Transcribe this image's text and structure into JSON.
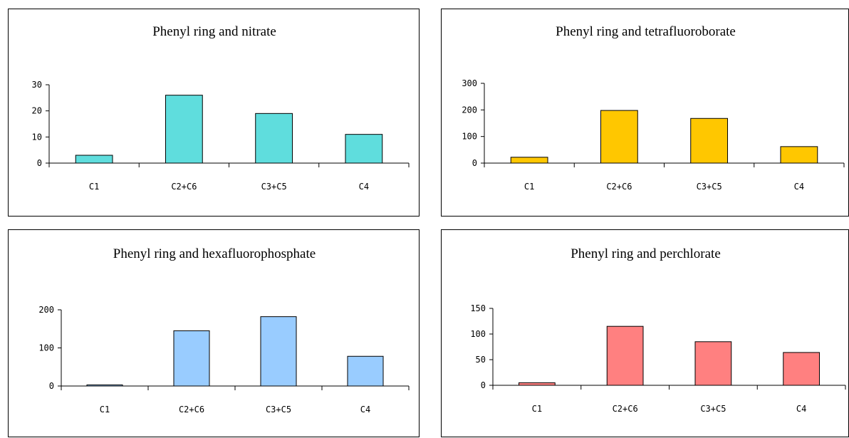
{
  "chart_data": [
    {
      "type": "bar",
      "title": "Phenyl ring and nitrate",
      "categories": [
        "C1",
        "C2+C6",
        "C3+C5",
        "C4"
      ],
      "values": [
        3,
        26,
        19,
        11
      ],
      "ylim": [
        0,
        30
      ],
      "yticks": [
        0,
        10,
        20,
        30
      ],
      "color": "#5FDDDD",
      "xlabel": "",
      "ylabel": "",
      "grid": false
    },
    {
      "type": "bar",
      "title": "Phenyl ring and tetrafluoroborate",
      "categories": [
        "C1",
        "C2+C6",
        "C3+C5",
        "C4"
      ],
      "values": [
        22,
        198,
        168,
        62
      ],
      "ylim": [
        0,
        300
      ],
      "yticks": [
        0,
        100,
        200,
        300
      ],
      "color": "#FFC700",
      "xlabel": "",
      "ylabel": "",
      "grid": false
    },
    {
      "type": "bar",
      "title": "Phenyl ring and hexafluorophosphate",
      "categories": [
        "C1",
        "C2+C6",
        "C3+C5",
        "C4"
      ],
      "values": [
        3,
        145,
        182,
        78
      ],
      "ylim": [
        0,
        200
      ],
      "yticks": [
        0,
        100,
        200
      ],
      "color": "#99CCFF",
      "xlabel": "",
      "ylabel": "",
      "grid": false
    },
    {
      "type": "bar",
      "title": "Phenyl ring and perchlorate",
      "categories": [
        "C1",
        "C2+C6",
        "C3+C5",
        "C4"
      ],
      "values": [
        5,
        115,
        85,
        64
      ],
      "ylim": [
        0,
        150
      ],
      "yticks": [
        0,
        50,
        100,
        150
      ],
      "color": "#FF8080",
      "xlabel": "",
      "ylabel": "",
      "grid": false
    }
  ]
}
